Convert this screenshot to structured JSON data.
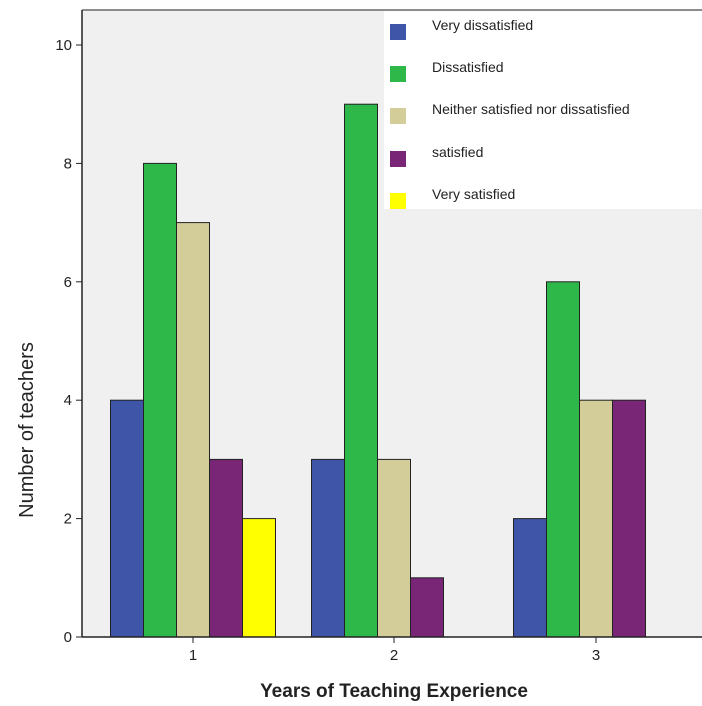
{
  "chart_data": {
    "type": "bar",
    "title": "",
    "xlabel": "Years of Teaching Experience",
    "ylabel": "Number of teachers",
    "categories": [
      "1",
      "2",
      "3"
    ],
    "ylim": [
      0,
      10
    ],
    "yticks": [
      0,
      2,
      4,
      6,
      8,
      10
    ],
    "grid": false,
    "legend_position": "top-right",
    "series": [
      {
        "name": "Very dissatisfied",
        "color": "#3f55a7",
        "values": [
          4,
          3,
          2
        ]
      },
      {
        "name": "Dissatisfied",
        "color": "#2eb84a",
        "values": [
          8,
          9,
          6
        ]
      },
      {
        "name": "Neither satisfied nor dissatisfied",
        "color": "#d3cd9a",
        "values": [
          7,
          3,
          4
        ]
      },
      {
        "name": "satisfied",
        "color": "#7a2676",
        "values": [
          3,
          1,
          4
        ]
      },
      {
        "name": "Very satisfied",
        "color": "#ffff00",
        "values": [
          2,
          0,
          0
        ]
      }
    ],
    "colors": {
      "plot_background": "#f0f0f0",
      "legend_background": "#ffffff",
      "bar_outline": "#222222",
      "axis": "#222222"
    }
  }
}
